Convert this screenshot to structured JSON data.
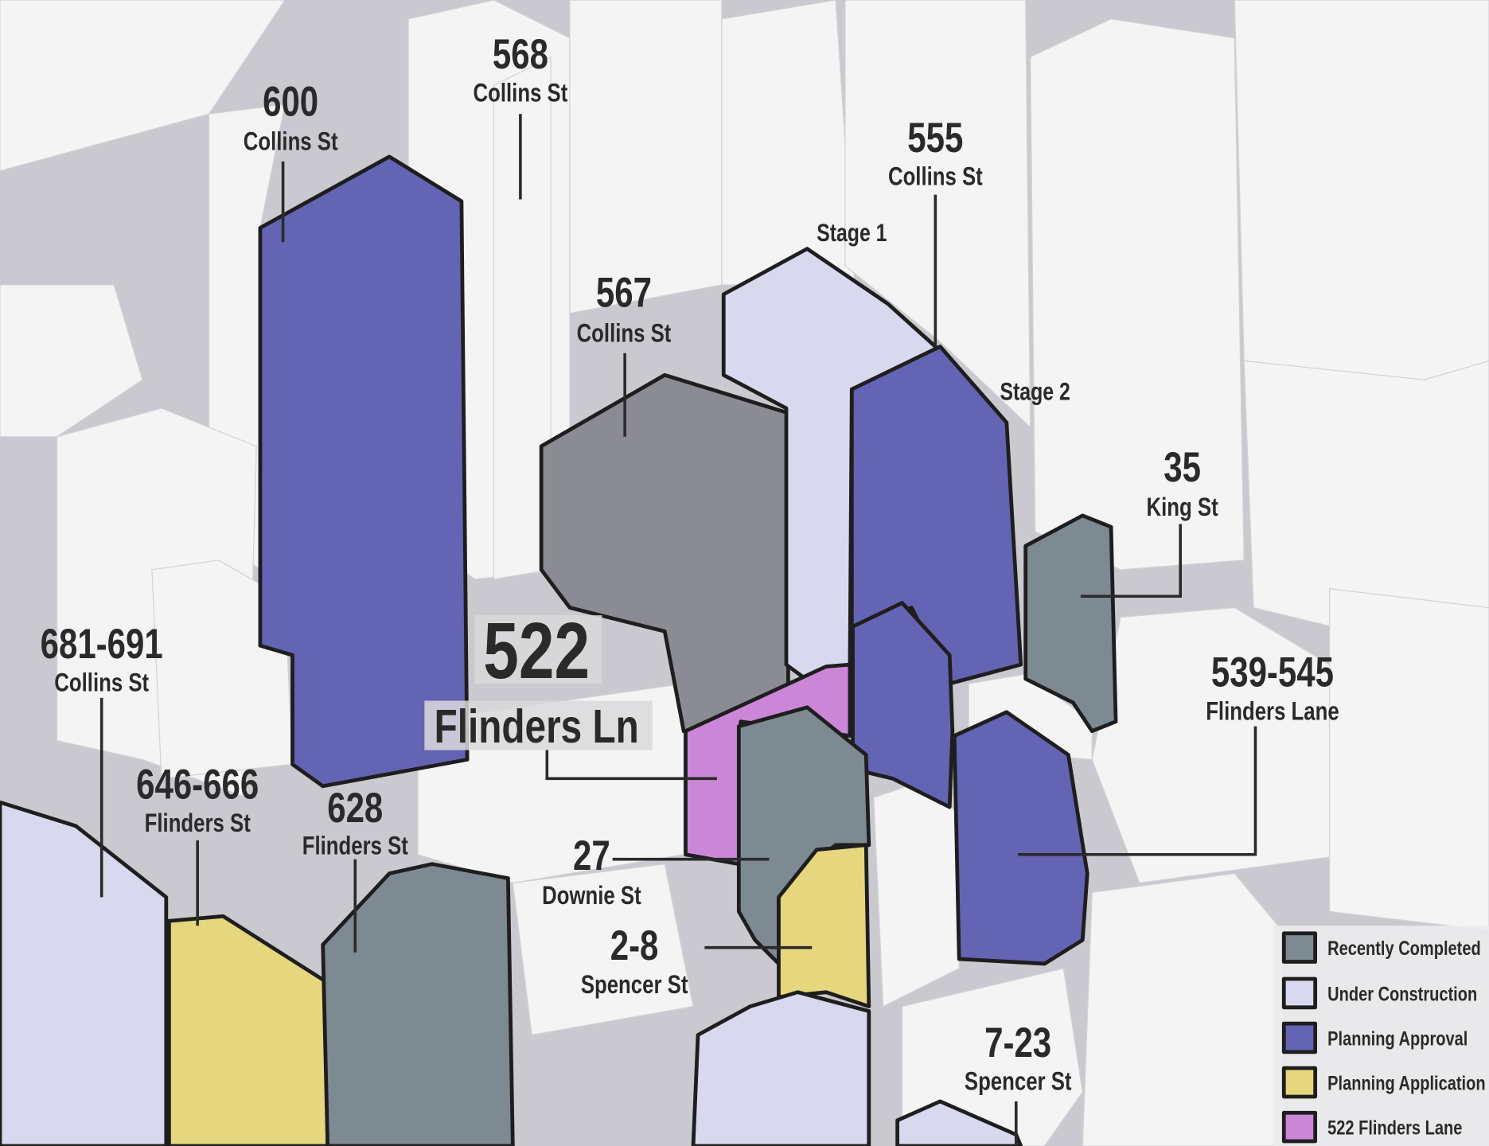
{
  "labels": [
    {
      "number": "600",
      "street": "Collins St"
    },
    {
      "number": "568",
      "street": "Collins St"
    },
    {
      "number": "555",
      "street": "Collins St"
    },
    {
      "number": "567",
      "street": "Collins St"
    },
    {
      "number": "35",
      "street": "King St"
    },
    {
      "number": "539-545",
      "street": "Flinders Lane"
    },
    {
      "number": "681-691",
      "street": "Collins St"
    },
    {
      "number": "646-666",
      "street": "Flinders St"
    },
    {
      "number": "628",
      "street": "Flinders St"
    },
    {
      "number": "27",
      "street": "Downie St"
    },
    {
      "number": "2-8",
      "street": "Spencer St"
    },
    {
      "number": "7-23",
      "street": "Spencer St"
    }
  ],
  "feature": {
    "number": "522",
    "street": "Flinders Ln"
  },
  "annotations": [
    "Stage 1",
    "Stage 2"
  ],
  "legend": [
    {
      "label": "Recently Completed",
      "color": "#7d8a92"
    },
    {
      "label": "Under Construction",
      "color": "#d8d8ef"
    },
    {
      "label": "Planning Approval",
      "color": "#6464b4"
    },
    {
      "label": "Planning Application",
      "color": "#e6d67e"
    },
    {
      "label": "522 Flinders Lane",
      "color": "#cc86d8"
    }
  ]
}
